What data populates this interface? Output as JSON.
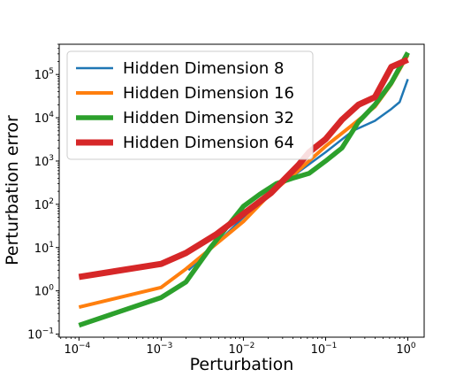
{
  "chart_data": {
    "type": "line",
    "title": "",
    "xlabel": "Perturbation",
    "ylabel": "Perturbation error",
    "xscale": "log",
    "yscale": "log",
    "xlim": [
      5.75e-05,
      1.58
    ],
    "ylim": [
      0.085,
      500000
    ],
    "grid": false,
    "legend_position": "top-left",
    "x_ticks": [
      {
        "value": 0.0001,
        "base": "10",
        "exp": "−4"
      },
      {
        "value": 0.001,
        "base": "10",
        "exp": "−3"
      },
      {
        "value": 0.01,
        "base": "10",
        "exp": "−2"
      },
      {
        "value": 0.1,
        "base": "10",
        "exp": "−1"
      },
      {
        "value": 1,
        "base": "10",
        "exp": "0"
      }
    ],
    "y_ticks": [
      {
        "value": 0.1,
        "base": "10",
        "exp": "−1"
      },
      {
        "value": 1,
        "base": "10",
        "exp": "0"
      },
      {
        "value": 10,
        "base": "10",
        "exp": "1"
      },
      {
        "value": 100,
        "base": "10",
        "exp": "2"
      },
      {
        "value": 1000,
        "base": "10",
        "exp": "3"
      },
      {
        "value": 10000,
        "base": "10",
        "exp": "4"
      },
      {
        "value": 100000,
        "base": "10",
        "exp": "5"
      }
    ],
    "series": [
      {
        "name": "Hidden Dimension 8",
        "color": "#1f77b4",
        "width": 2.5,
        "x": [
          0.00215,
          0.00464,
          0.01,
          0.0215,
          0.0464,
          0.1,
          0.215,
          0.398,
          0.631,
          0.794,
          1.0
        ],
        "y": [
          3,
          12,
          50,
          200,
          550,
          1600,
          5000,
          8500,
          16000,
          23000,
          78000
        ]
      },
      {
        "name": "Hidden Dimension 16",
        "color": "#ff7f0e",
        "width": 4,
        "x": [
          0.0001,
          0.001,
          0.002,
          0.00464,
          0.01,
          0.0215,
          0.0464,
          0.1,
          0.215,
          0.398,
          0.631,
          1.0
        ],
        "y": [
          0.42,
          1.2,
          3.2,
          12,
          40,
          180,
          600,
          2200,
          7000,
          18000,
          60000,
          280000
        ]
      },
      {
        "name": "Hidden Dimension 32",
        "color": "#2ca02c",
        "width": 5.5,
        "x": [
          0.0001,
          0.001,
          0.002,
          0.00398,
          0.01,
          0.0158,
          0.0251,
          0.0398,
          0.0631,
          0.1,
          0.158,
          0.251,
          0.398,
          0.631,
          1.0
        ],
        "y": [
          0.16,
          0.7,
          1.6,
          10,
          90,
          170,
          300,
          400,
          520,
          1000,
          2000,
          8000,
          20000,
          65000,
          320000
        ]
      },
      {
        "name": "Hidden Dimension 64",
        "color": "#d62728",
        "width": 7,
        "x": [
          0.0001,
          0.001,
          0.002,
          0.00464,
          0.01,
          0.0215,
          0.0464,
          0.0631,
          0.1,
          0.158,
          0.251,
          0.398,
          0.631,
          1.0
        ],
        "y": [
          2.1,
          4.2,
          7.5,
          20,
          60,
          180,
          800,
          1600,
          3200,
          9000,
          20000,
          30000,
          150000,
          220000
        ]
      }
    ]
  }
}
